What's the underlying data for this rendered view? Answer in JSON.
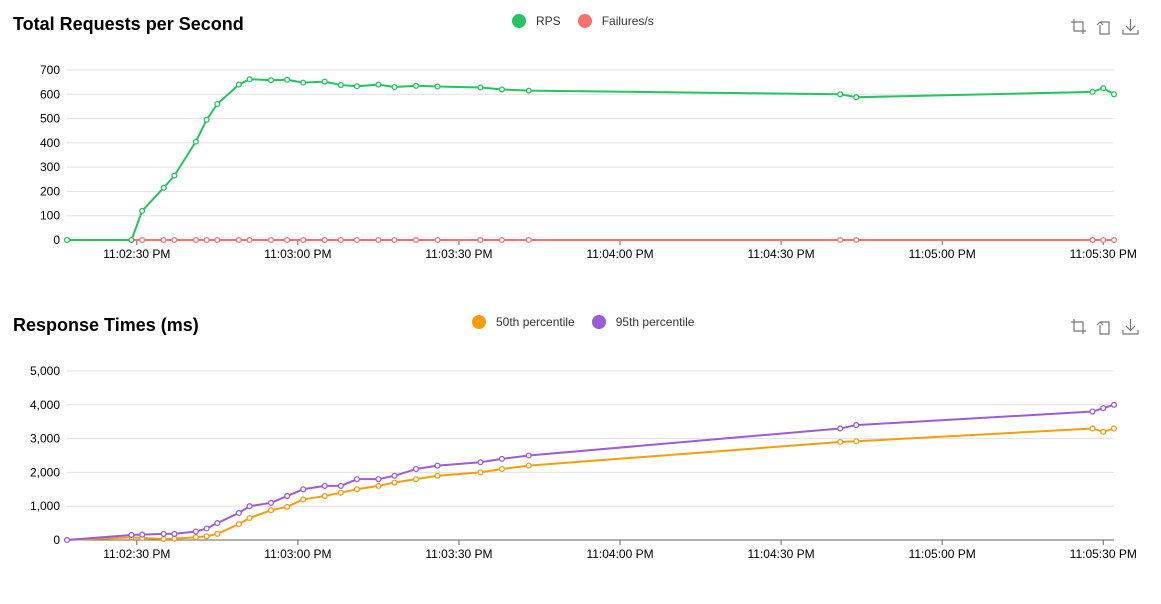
{
  "colors": {
    "rps": "#22c55e",
    "failures": "#f87171",
    "p50": "#f59e0b",
    "p95": "#9b5cd6",
    "grid": "#e0e0e0",
    "axis": "#666666"
  },
  "icons": [
    "zoom-icon",
    "zoom-reset-icon",
    "download-icon"
  ],
  "chart_data": [
    {
      "type": "line",
      "title": "Total Requests per Second",
      "xlabel": "",
      "ylabel": "",
      "x_ticks": [
        "11:02:30 PM",
        "11:03:00 PM",
        "11:03:30 PM",
        "11:04:00 PM",
        "11:04:30 PM",
        "11:05:00 PM",
        "11:05:30 PM"
      ],
      "y_ticks": [
        "0",
        "100",
        "200",
        "300",
        "400",
        "500",
        "600",
        "700"
      ],
      "ylim": [
        0,
        700
      ],
      "x": [
        "11:02:17 PM",
        "11:02:29 PM",
        "11:02:31 PM",
        "11:02:35 PM",
        "11:02:37 PM",
        "11:02:41 PM",
        "11:02:43 PM",
        "11:02:45 PM",
        "11:02:49 PM",
        "11:02:51 PM",
        "11:02:55 PM",
        "11:02:58 PM",
        "11:03:01 PM",
        "11:03:05 PM",
        "11:03:08 PM",
        "11:03:11 PM",
        "11:03:15 PM",
        "11:03:18 PM",
        "11:03:22 PM",
        "11:03:26 PM",
        "11:03:34 PM",
        "11:03:38 PM",
        "11:03:43 PM",
        "11:04:41 PM",
        "11:04:44 PM",
        "11:05:28 PM",
        "11:05:30 PM",
        "11:05:32 PM"
      ],
      "series": [
        {
          "name": "RPS",
          "values": [
            0,
            0,
            120,
            215,
            265,
            405,
            495,
            560,
            640,
            662,
            658,
            660,
            648,
            652,
            638,
            633,
            640,
            630,
            635,
            632,
            628,
            620,
            615,
            600,
            588,
            610,
            625,
            600
          ]
        },
        {
          "name": "Failures/s",
          "values": [
            0,
            0,
            0,
            0,
            0,
            0,
            0,
            0,
            0,
            0,
            0,
            0,
            0,
            0,
            0,
            0,
            0,
            0,
            0,
            0,
            0,
            0,
            0,
            0,
            0,
            0,
            0,
            0
          ]
        }
      ],
      "grid": true,
      "legend": "top-center"
    },
    {
      "type": "line",
      "title": "Response Times (ms)",
      "xlabel": "",
      "ylabel": "",
      "x_ticks": [
        "11:02:30 PM",
        "11:03:00 PM",
        "11:03:30 PM",
        "11:04:00 PM",
        "11:04:30 PM",
        "11:05:00 PM",
        "11:05:30 PM"
      ],
      "y_ticks": [
        "0",
        "1,000",
        "2,000",
        "3,000",
        "4,000",
        "5,000"
      ],
      "ylim": [
        0,
        5000
      ],
      "x": [
        "11:02:17 PM",
        "11:02:29 PM",
        "11:02:31 PM",
        "11:02:35 PM",
        "11:02:37 PM",
        "11:02:41 PM",
        "11:02:43 PM",
        "11:02:45 PM",
        "11:02:49 PM",
        "11:02:51 PM",
        "11:02:55 PM",
        "11:02:58 PM",
        "11:03:01 PM",
        "11:03:05 PM",
        "11:03:08 PM",
        "11:03:11 PM",
        "11:03:15 PM",
        "11:03:18 PM",
        "11:03:22 PM",
        "11:03:26 PM",
        "11:03:34 PM",
        "11:03:38 PM",
        "11:03:43 PM",
        "11:04:41 PM",
        "11:04:44 PM",
        "11:05:28 PM",
        "11:05:30 PM",
        "11:05:32 PM"
      ],
      "series": [
        {
          "name": "50th percentile",
          "values": [
            0,
            80,
            60,
            30,
            40,
            80,
            110,
            180,
            470,
            650,
            880,
            980,
            1200,
            1300,
            1400,
            1500,
            1600,
            1700,
            1800,
            1900,
            2000,
            2100,
            2200,
            2900,
            2920,
            3300,
            3200,
            3300
          ]
        },
        {
          "name": "95th percentile",
          "values": [
            0,
            150,
            160,
            180,
            180,
            250,
            340,
            500,
            800,
            1000,
            1100,
            1300,
            1500,
            1600,
            1600,
            1800,
            1800,
            1900,
            2100,
            2200,
            2300,
            2400,
            2500,
            3300,
            3400,
            3800,
            3900,
            4000
          ]
        }
      ],
      "grid": true,
      "legend": "top-center"
    }
  ]
}
